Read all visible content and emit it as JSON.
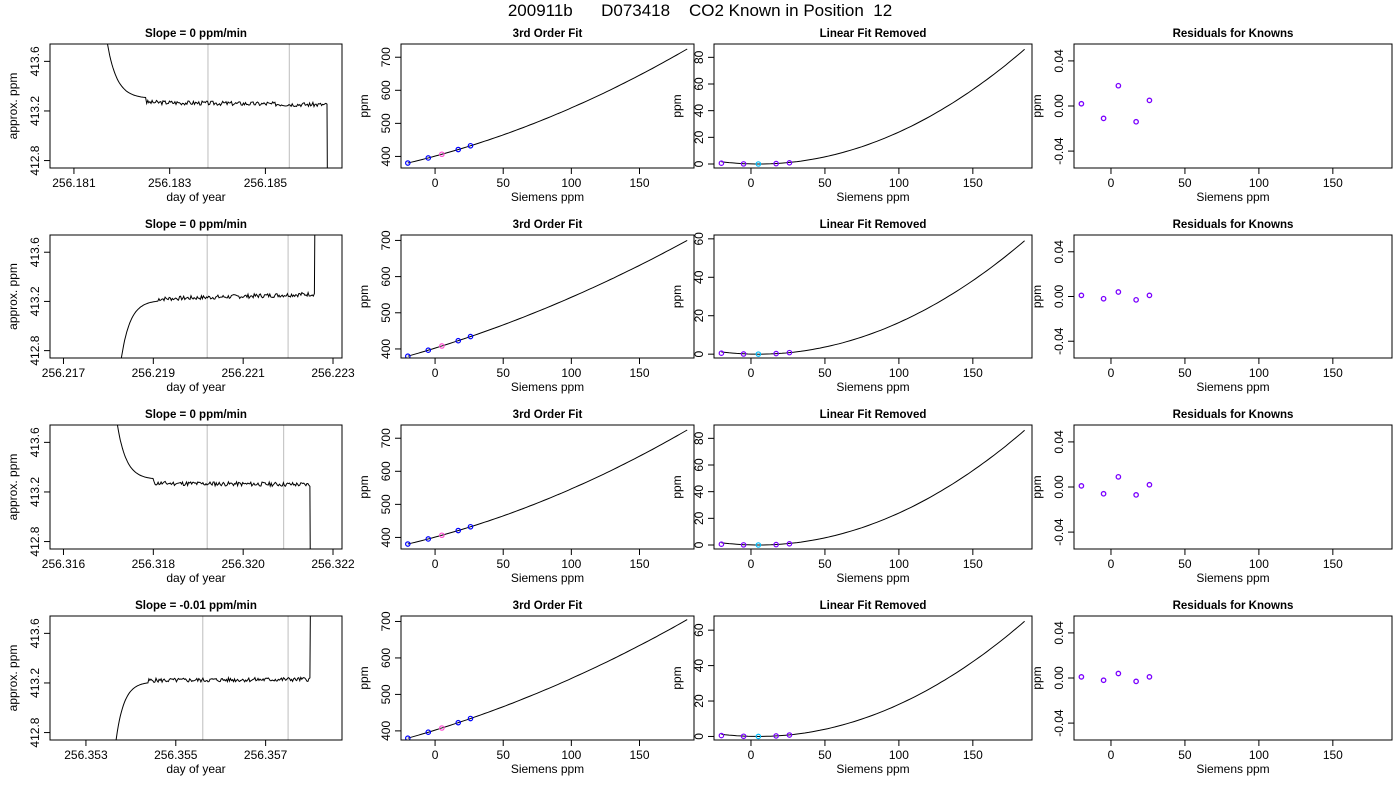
{
  "page_title": "200911b      D073418    CO2 Known in Position  12",
  "chart_data": [
    {
      "row": 1,
      "col": 1,
      "type": "line",
      "title": "Slope =  0  ppm/min",
      "xlabel": "day of year",
      "ylabel": "approx. ppm",
      "xlim": [
        256.1805,
        256.1866
      ],
      "ylim": [
        412.74,
        413.74
      ],
      "xticks": [
        256.181,
        256.183,
        256.185
      ],
      "xtick_labels": [
        "256.181",
        "256.183",
        "256.185"
      ],
      "yticks": [
        412.8,
        413.2,
        413.6
      ],
      "ytick_labels": [
        "412.8",
        "413.2",
        "413.6"
      ],
      "vlines": [
        256.1838,
        256.1855
      ],
      "series": [
        {
          "transient": "fall",
          "t_start": 256.1815,
          "t_settle": 256.1825,
          "plateau": 413.27,
          "plateau_end": 413.25,
          "t_end": 256.1863,
          "drop_end": 256.1864,
          "seed": 3
        }
      ]
    },
    {
      "row": 1,
      "col": 2,
      "type": "line",
      "title": "3rd Order Fit",
      "xlabel": "Siemens ppm",
      "ylabel": "ppm",
      "xlim": [
        -25,
        190
      ],
      "ylim": [
        365,
        740
      ],
      "xticks": [
        0,
        50,
        100,
        150
      ],
      "yticks": [
        400,
        500,
        600,
        700
      ],
      "curve": {
        "x0": -20,
        "x1": 185,
        "y0": 380,
        "y1": 725,
        "c": 0.00345
      },
      "points": [
        {
          "x": -20,
          "color": "#0000ff"
        },
        {
          "x": -5,
          "color": "#0000ff"
        },
        {
          "x": 5,
          "color": "#ff4dd2"
        },
        {
          "x": 17,
          "color": "#0000ff"
        },
        {
          "x": 26,
          "color": "#0000ff"
        }
      ]
    },
    {
      "row": 1,
      "col": 3,
      "type": "line",
      "title": "Linear Fit Removed",
      "xlabel": "Siemens ppm",
      "ylabel": "ppm",
      "xlim": [
        -25,
        190
      ],
      "ylim": [
        -3,
        90
      ],
      "xticks": [
        0,
        50,
        100,
        150
      ],
      "yticks": [
        0,
        20,
        40,
        60,
        80
      ],
      "curve": {
        "x0": -20,
        "x1": 185,
        "ymin": 0,
        "ymax": 86,
        "xmin": 5
      },
      "points": [
        {
          "x": -20,
          "y": 0.6,
          "color": "#7a00ff"
        },
        {
          "x": -5,
          "y": 0.1,
          "color": "#7a00ff"
        },
        {
          "x": 5,
          "y": 0,
          "color": "#00bfff"
        },
        {
          "x": 17,
          "y": 0.3,
          "color": "#7a00ff"
        },
        {
          "x": 26,
          "y": 0.9,
          "color": "#7a00ff"
        }
      ]
    },
    {
      "row": 1,
      "col": 4,
      "type": "scatter",
      "title": "Residuals for Knowns",
      "xlabel": "Siemens ppm",
      "ylabel": "ppm",
      "xlim": [
        -25,
        190
      ],
      "ylim": [
        -0.055,
        0.055
      ],
      "xticks": [
        0,
        50,
        100,
        150
      ],
      "yticks": [
        -0.04,
        0,
        0.04
      ],
      "ytick_labels": [
        "-0.04",
        "0.00",
        "0.04"
      ],
      "points": [
        {
          "x": -20,
          "y": 0.002
        },
        {
          "x": -5,
          "y": -0.011
        },
        {
          "x": 5,
          "y": 0.018
        },
        {
          "x": 17,
          "y": -0.014
        },
        {
          "x": 26,
          "y": 0.005
        }
      ]
    },
    {
      "row": 2,
      "col": 1,
      "type": "line",
      "title": "Slope =  0  ppm/min",
      "xlabel": "day of year",
      "ylabel": "approx. ppm",
      "xlim": [
        256.2167,
        256.2232
      ],
      "ylim": [
        412.74,
        413.74
      ],
      "xticks": [
        256.217,
        256.219,
        256.221,
        256.223
      ],
      "xtick_labels": [
        "256.217",
        "256.219",
        "256.221",
        "256.223"
      ],
      "yticks": [
        412.8,
        413.2,
        413.6
      ],
      "ytick_labels": [
        "412.8",
        "413.2",
        "413.6"
      ],
      "vlines": [
        256.2202,
        256.222
      ],
      "series": [
        {
          "transient": "rise",
          "t_start": 256.2181,
          "t_settle": 256.2191,
          "plateau": 413.22,
          "plateau_end": 413.26,
          "t_end": 256.2226,
          "drop_end": 256.2227,
          "seed": 7
        }
      ]
    },
    {
      "row": 2,
      "col": 2,
      "type": "line",
      "title": "3rd Order Fit",
      "xlabel": "Siemens ppm",
      "ylabel": "ppm",
      "xlim": [
        -25,
        190
      ],
      "ylim": [
        375,
        715
      ],
      "xticks": [
        0,
        50,
        100,
        150
      ],
      "yticks": [
        400,
        500,
        600,
        700
      ],
      "curve": {
        "x0": -20,
        "x1": 185,
        "y0": 380,
        "y1": 700,
        "c": 0.0024
      },
      "points": [
        {
          "x": -20,
          "color": "#0000ff"
        },
        {
          "x": -5,
          "color": "#0000ff"
        },
        {
          "x": 5,
          "color": "#ff4dd2"
        },
        {
          "x": 17,
          "color": "#0000ff"
        },
        {
          "x": 26,
          "color": "#0000ff"
        }
      ]
    },
    {
      "row": 2,
      "col": 3,
      "type": "line",
      "title": "Linear Fit Removed",
      "xlabel": "Siemens ppm",
      "ylabel": "ppm",
      "xlim": [
        -25,
        190
      ],
      "ylim": [
        -2,
        62
      ],
      "xticks": [
        0,
        50,
        100,
        150
      ],
      "yticks": [
        0,
        20,
        40,
        60
      ],
      "curve": {
        "x0": -20,
        "x1": 185,
        "ymin": 0,
        "ymax": 59,
        "xmin": 5
      },
      "points": [
        {
          "x": -20,
          "y": 0.5,
          "color": "#7a00ff"
        },
        {
          "x": -5,
          "y": 0.1,
          "color": "#7a00ff"
        },
        {
          "x": 5,
          "y": 0,
          "color": "#00bfff"
        },
        {
          "x": 17,
          "y": 0.3,
          "color": "#7a00ff"
        },
        {
          "x": 26,
          "y": 0.8,
          "color": "#7a00ff"
        }
      ]
    },
    {
      "row": 2,
      "col": 4,
      "type": "scatter",
      "title": "Residuals for Knowns",
      "xlabel": "Siemens ppm",
      "ylabel": "ppm",
      "xlim": [
        -25,
        190
      ],
      "ylim": [
        -0.055,
        0.055
      ],
      "xticks": [
        0,
        50,
        100,
        150
      ],
      "yticks": [
        -0.04,
        0,
        0.04
      ],
      "ytick_labels": [
        "-0.04",
        "0.00",
        "0.04"
      ],
      "points": [
        {
          "x": -20,
          "y": 0.001
        },
        {
          "x": -5,
          "y": -0.002
        },
        {
          "x": 5,
          "y": 0.004
        },
        {
          "x": 17,
          "y": -0.003
        },
        {
          "x": 26,
          "y": 0.001
        }
      ]
    },
    {
      "row": 3,
      "col": 1,
      "type": "line",
      "title": "Slope =  0  ppm/min",
      "xlabel": "day of year",
      "ylabel": "approx. ppm",
      "xlim": [
        256.3157,
        256.3222
      ],
      "ylim": [
        412.74,
        413.74
      ],
      "xticks": [
        256.316,
        256.318,
        256.32,
        256.322
      ],
      "xtick_labels": [
        "256.316",
        "256.318",
        "256.320",
        "256.322"
      ],
      "yticks": [
        412.8,
        413.2,
        413.6
      ],
      "ytick_labels": [
        "412.8",
        "413.2",
        "413.6"
      ],
      "vlines": [
        256.3192,
        256.3209
      ],
      "series": [
        {
          "transient": "fall",
          "t_start": 256.317,
          "t_settle": 256.318,
          "plateau": 413.27,
          "plateau_end": 413.26,
          "t_end": 256.3215,
          "drop_end": 256.3216,
          "seed": 11
        }
      ]
    },
    {
      "row": 3,
      "col": 2,
      "type": "line",
      "title": "3rd Order Fit",
      "xlabel": "Siemens ppm",
      "ylabel": "ppm",
      "xlim": [
        -25,
        190
      ],
      "ylim": [
        365,
        740
      ],
      "xticks": [
        0,
        50,
        100,
        150
      ],
      "yticks": [
        400,
        500,
        600,
        700
      ],
      "curve": {
        "x0": -20,
        "x1": 185,
        "y0": 380,
        "y1": 725,
        "c": 0.00345
      },
      "points": [
        {
          "x": -20,
          "color": "#0000ff"
        },
        {
          "x": -5,
          "color": "#0000ff"
        },
        {
          "x": 5,
          "color": "#ff4dd2"
        },
        {
          "x": 17,
          "color": "#0000ff"
        },
        {
          "x": 26,
          "color": "#0000ff"
        }
      ]
    },
    {
      "row": 3,
      "col": 3,
      "type": "line",
      "title": "Linear Fit Removed",
      "xlabel": "Siemens ppm",
      "ylabel": "ppm",
      "xlim": [
        -25,
        190
      ],
      "ylim": [
        -3,
        90
      ],
      "xticks": [
        0,
        50,
        100,
        150
      ],
      "yticks": [
        0,
        20,
        40,
        60,
        80
      ],
      "curve": {
        "x0": -20,
        "x1": 185,
        "ymin": 0,
        "ymax": 86,
        "xmin": 5
      },
      "points": [
        {
          "x": -20,
          "y": 0.6,
          "color": "#7a00ff"
        },
        {
          "x": -5,
          "y": 0.1,
          "color": "#7a00ff"
        },
        {
          "x": 5,
          "y": 0,
          "color": "#00bfff"
        },
        {
          "x": 17,
          "y": 0.3,
          "color": "#7a00ff"
        },
        {
          "x": 26,
          "y": 0.9,
          "color": "#7a00ff"
        }
      ]
    },
    {
      "row": 3,
      "col": 4,
      "type": "scatter",
      "title": "Residuals for Knowns",
      "xlabel": "Siemens ppm",
      "ylabel": "ppm",
      "xlim": [
        -25,
        190
      ],
      "ylim": [
        -0.055,
        0.055
      ],
      "xticks": [
        0,
        50,
        100,
        150
      ],
      "yticks": [
        -0.04,
        0,
        0.04
      ],
      "ytick_labels": [
        "-0.04",
        "0.00",
        "0.04"
      ],
      "points": [
        {
          "x": -20,
          "y": 0.001
        },
        {
          "x": -5,
          "y": -0.006
        },
        {
          "x": 5,
          "y": 0.009
        },
        {
          "x": 17,
          "y": -0.007
        },
        {
          "x": 26,
          "y": 0.002
        }
      ]
    },
    {
      "row": 4,
      "col": 1,
      "type": "line",
      "title": "Slope =  -0.01  ppm/min",
      "xlabel": "day of year",
      "ylabel": "approx. ppm",
      "xlim": [
        256.3522,
        256.3587
      ],
      "ylim": [
        412.74,
        413.74
      ],
      "xticks": [
        256.353,
        256.355,
        256.357
      ],
      "xtick_labels": [
        "256.353",
        "256.355",
        "256.357"
      ],
      "yticks": [
        412.8,
        413.2,
        413.6
      ],
      "ytick_labels": [
        "412.8",
        "413.2",
        "413.6"
      ],
      "vlines": [
        256.3556,
        256.3575
      ],
      "series": [
        {
          "transient": "rise",
          "t_start": 256.3535,
          "t_settle": 256.3544,
          "plateau": 413.22,
          "plateau_end": 413.23,
          "t_end": 256.358,
          "drop_end": 256.3581,
          "seed": 5
        }
      ]
    },
    {
      "row": 4,
      "col": 2,
      "type": "line",
      "title": "3rd Order Fit",
      "xlabel": "Siemens ppm",
      "ylabel": "ppm",
      "xlim": [
        -25,
        190
      ],
      "ylim": [
        375,
        715
      ],
      "xticks": [
        0,
        50,
        100,
        150
      ],
      "yticks": [
        400,
        500,
        600,
        700
      ],
      "curve": {
        "x0": -20,
        "x1": 185,
        "y0": 380,
        "y1": 705,
        "c": 0.0026
      },
      "points": [
        {
          "x": -20,
          "color": "#0000ff"
        },
        {
          "x": -5,
          "color": "#0000ff"
        },
        {
          "x": 5,
          "color": "#ff4dd2"
        },
        {
          "x": 17,
          "color": "#0000ff"
        },
        {
          "x": 26,
          "color": "#0000ff"
        }
      ]
    },
    {
      "row": 4,
      "col": 3,
      "type": "line",
      "title": "Linear Fit Removed",
      "xlabel": "Siemens ppm",
      "ylabel": "ppm",
      "xlim": [
        -25,
        190
      ],
      "ylim": [
        -2,
        68
      ],
      "xticks": [
        0,
        50,
        100,
        150
      ],
      "yticks": [
        0,
        20,
        40,
        60
      ],
      "curve": {
        "x0": -20,
        "x1": 185,
        "ymin": 0,
        "ymax": 65,
        "xmin": 5
      },
      "points": [
        {
          "x": -20,
          "y": 0.5,
          "color": "#7a00ff"
        },
        {
          "x": -5,
          "y": 0.1,
          "color": "#7a00ff"
        },
        {
          "x": 5,
          "y": 0,
          "color": "#00bfff"
        },
        {
          "x": 17,
          "y": 0.3,
          "color": "#7a00ff"
        },
        {
          "x": 26,
          "y": 0.8,
          "color": "#7a00ff"
        }
      ]
    },
    {
      "row": 4,
      "col": 4,
      "type": "scatter",
      "title": "Residuals for Knowns",
      "xlabel": "Siemens ppm",
      "ylabel": "ppm",
      "xlim": [
        -25,
        190
      ],
      "ylim": [
        -0.055,
        0.055
      ],
      "xticks": [
        0,
        50,
        100,
        150
      ],
      "yticks": [
        -0.04,
        0,
        0.04
      ],
      "ytick_labels": [
        "-0.04",
        "0.00",
        "0.04"
      ],
      "points": [
        {
          "x": -20,
          "y": 0.001
        },
        {
          "x": -5,
          "y": -0.002
        },
        {
          "x": 5,
          "y": 0.004
        },
        {
          "x": 17,
          "y": -0.003
        },
        {
          "x": 26,
          "y": 0.001
        }
      ]
    }
  ]
}
